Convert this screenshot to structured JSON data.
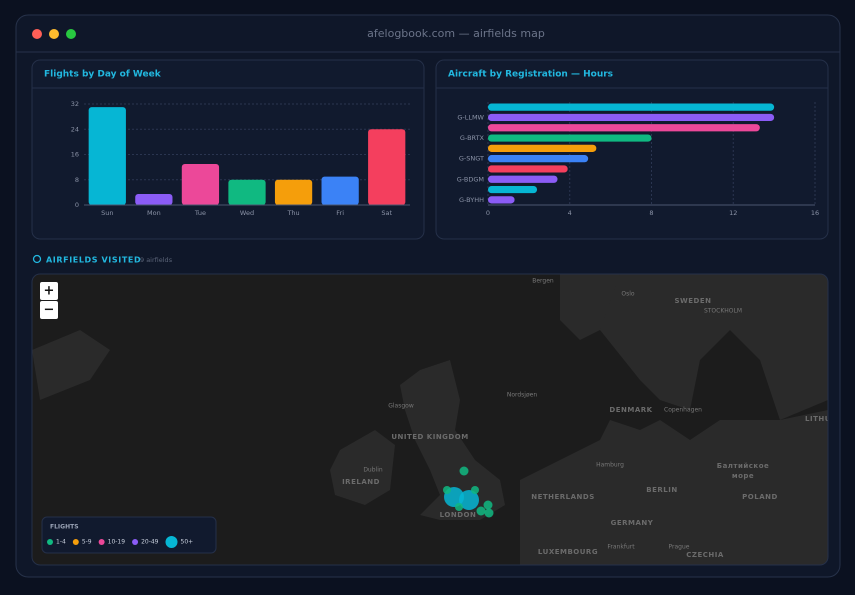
{
  "window": {
    "title": "afelogbook.com — airfields map"
  },
  "chart_data": [
    {
      "type": "bar",
      "title": "Flights by Day of Week",
      "categories": [
        "Sun",
        "Mon",
        "Tue",
        "Wed",
        "Thu",
        "Fri",
        "Sat"
      ],
      "values": [
        31,
        3.5,
        13,
        8,
        8,
        9,
        24
      ],
      "colors": [
        "#06b6d4",
        "#8b5cf6",
        "#ec4899",
        "#10b981",
        "#f59e0b",
        "#3b82f6",
        "#f43f5e"
      ],
      "ylim": [
        0,
        32
      ],
      "yticks": [
        0,
        8,
        16,
        24,
        32
      ],
      "grid": true
    },
    {
      "type": "barh",
      "title": "Aircraft by Registration — Hours",
      "categories": [
        null,
        "G-LLMW",
        null,
        "G-BRTX",
        null,
        "G-SNGT",
        null,
        "G-BDGM",
        null,
        "G-BYHH"
      ],
      "values": [
        14,
        14,
        13.3,
        8,
        5.3,
        4.9,
        3.9,
        3.4,
        2.4,
        1.3
      ],
      "colors": [
        "#06b6d4",
        "#8b5cf6",
        "#ec4899",
        "#10b981",
        "#f59e0b",
        "#3b82f6",
        "#f43f5e",
        "#8b5cf6",
        "#06b6d4",
        "#8b5cf6"
      ],
      "xlim": [
        0,
        16
      ],
      "xticks": [
        0,
        4,
        8,
        12,
        16
      ],
      "grid": true
    }
  ],
  "map": {
    "section_title": "AIRFIELDS VISITED",
    "count_label": "9 airfields",
    "zoom_in": "+",
    "zoom_out": "−",
    "labels": [
      "SWEDEN",
      "STOCKHOLM",
      "Oslo",
      "Bergen",
      "UNITED KINGDOM",
      "IRELAND",
      "Dublin",
      "Glasgow",
      "LONDON",
      "DENMARK",
      "Copenhagen",
      "Nordsjøen",
      "NETHERLANDS",
      "Hamburg",
      "BERLIN",
      "POLAND",
      "GERMANY",
      "Frankfurt",
      "LUXEMBOURG",
      "Prague",
      "CZECHIA",
      "Балтийское",
      "море",
      "LITHU"
    ],
    "legend": {
      "title": "FLIGHTS",
      "items": [
        "1-4",
        "5-9",
        "10-19",
        "20-49",
        "50+"
      ],
      "colors": [
        "#10b981",
        "#f59e0b",
        "#ec4899",
        "#8b5cf6",
        "#06b6d4"
      ]
    }
  }
}
